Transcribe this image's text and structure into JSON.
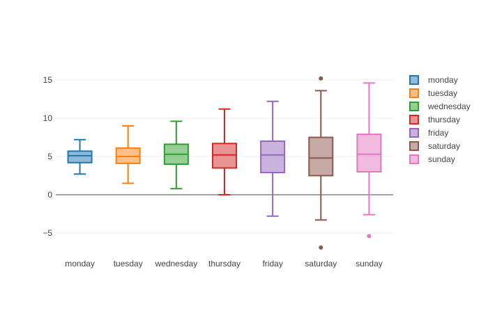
{
  "chart_data": {
    "type": "box",
    "title": "",
    "xlabel": "",
    "ylabel": "",
    "ylim": [
      -8,
      17
    ],
    "yticks": [
      -5,
      0,
      5,
      10,
      15
    ],
    "grid": true,
    "legend_position": "right",
    "categories": [
      "monday",
      "tuesday",
      "wednesday",
      "thursday",
      "friday",
      "saturday",
      "sunday"
    ],
    "series": [
      {
        "name": "monday",
        "color": "#1f77b4",
        "min": 2.7,
        "q1": 4.2,
        "median": 5.1,
        "q3": 5.7,
        "max": 7.2,
        "outliers": []
      },
      {
        "name": "tuesday",
        "color": "#ff7f0e",
        "min": 1.5,
        "q1": 4.1,
        "median": 5.0,
        "q3": 6.1,
        "max": 9.0,
        "outliers": []
      },
      {
        "name": "wednesday",
        "color": "#2ca02c",
        "min": 0.8,
        "q1": 4.0,
        "median": 5.3,
        "q3": 6.6,
        "max": 9.6,
        "outliers": []
      },
      {
        "name": "thursday",
        "color": "#d62728",
        "min": 0.0,
        "q1": 3.5,
        "median": 5.2,
        "q3": 6.7,
        "max": 11.2,
        "outliers": []
      },
      {
        "name": "friday",
        "color": "#9467bd",
        "min": -2.8,
        "q1": 2.9,
        "median": 5.2,
        "q3": 7.0,
        "max": 12.2,
        "outliers": []
      },
      {
        "name": "saturday",
        "color": "#8c564b",
        "min": -3.3,
        "q1": 2.5,
        "median": 4.8,
        "q3": 7.5,
        "max": 13.6,
        "outliers": [
          15.2,
          -6.9
        ]
      },
      {
        "name": "sunday",
        "color": "#e377c2",
        "min": -2.6,
        "q1": 3.0,
        "median": 5.3,
        "q3": 7.9,
        "max": 14.6,
        "outliers": [
          -5.4
        ]
      }
    ]
  }
}
